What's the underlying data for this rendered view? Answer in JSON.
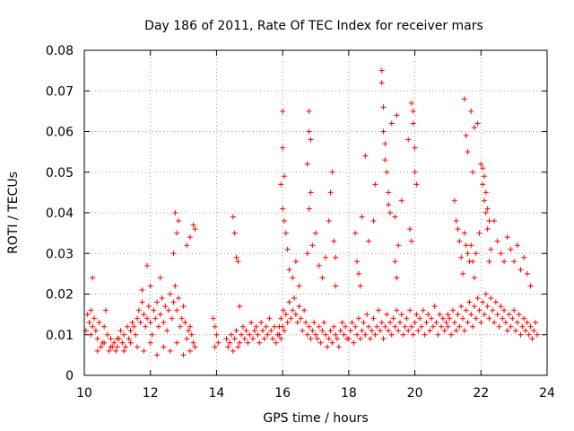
{
  "chart_data": {
    "type": "scatter",
    "title": "Day 186 of 2011, Rate Of TEC Index for receiver mars",
    "xlabel": "GPS time / hours",
    "ylabel": "ROTI / TECUs",
    "xlim": [
      10,
      24
    ],
    "ylim": [
      0,
      0.08
    ],
    "xticks": [
      "10",
      "12",
      "14",
      "16",
      "18",
      "20",
      "22",
      "24"
    ],
    "yticks": [
      "0",
      "0.01",
      "0.02",
      "0.03",
      "0.04",
      "0.05",
      "0.06",
      "0.07",
      "0.08"
    ],
    "grid": true,
    "marker": "+",
    "color": "#ff0000",
    "series": [
      {
        "x": [
          10.05,
          10.1,
          10.15,
          10.2,
          10.25,
          10.3,
          10.35,
          10.4,
          10.45,
          10.5,
          10.55,
          10.6,
          10.65,
          10.7,
          10.75,
          10.8,
          10.85,
          10.9,
          10.95,
          11.0,
          11.05,
          11.1,
          11.15,
          11.2,
          11.25,
          11.3,
          11.35,
          11.4,
          11.45,
          11.5,
          11.55,
          11.6,
          11.65,
          11.7,
          11.75,
          11.8,
          11.85,
          11.9,
          11.95,
          12.0,
          12.05,
          12.1,
          12.15,
          12.2,
          12.25,
          12.3,
          12.35,
          12.4,
          12.45,
          12.5,
          12.55,
          12.6,
          12.65,
          12.7,
          12.75,
          12.8,
          12.85,
          12.9,
          12.95,
          13.0,
          13.05,
          13.1,
          13.15,
          13.2,
          13.25,
          13.3,
          13.35,
          10.2,
          10.4,
          10.6,
          10.8,
          11.0,
          11.2,
          11.4,
          11.6,
          11.8,
          12.0,
          12.2,
          12.4,
          12.6,
          12.8,
          13.0,
          13.2,
          10.25,
          11.75,
          11.9,
          12.3,
          12.75,
          12.8,
          12.85,
          13.1,
          13.2,
          13.3,
          13.35,
          12.7,
          12.0,
          13.9,
          13.95,
          14.0,
          14.05,
          13.95,
          14.3,
          14.35,
          14.4,
          14.45,
          14.5,
          14.55,
          14.6,
          14.65,
          14.7,
          14.75,
          14.8,
          14.85,
          14.9,
          14.95,
          15.0,
          15.05,
          15.1,
          15.15,
          15.2,
          15.25,
          15.3,
          15.35,
          15.4,
          15.45,
          15.5,
          15.55,
          15.6,
          15.65,
          15.7,
          15.75,
          15.8,
          15.85,
          15.9,
          15.95,
          14.5,
          14.55,
          14.6,
          14.65,
          14.7,
          15.9,
          15.95,
          16.0,
          16.02,
          16.05,
          16.1,
          16.15,
          16.2,
          16.25,
          16.3,
          16.35,
          16.4,
          16.45,
          16.5,
          16.55,
          16.6,
          16.65,
          16.7,
          16.75,
          16.8,
          16.85,
          16.9,
          16.95,
          17.0,
          17.05,
          17.1,
          17.15,
          17.2,
          17.25,
          17.3,
          17.35,
          17.4,
          17.45,
          17.5,
          17.55,
          17.6,
          17.65,
          17.7,
          17.75,
          17.8,
          17.85,
          17.9,
          17.95,
          16.0,
          16.0,
          16.05,
          15.95,
          16.0,
          16.05,
          16.1,
          16.15,
          16.2,
          16.3,
          16.4,
          16.5,
          16.8,
          16.8,
          16.85,
          16.8,
          16.85,
          16.9,
          16.75,
          16.75,
          17.0,
          17.1,
          17.2,
          17.3,
          17.4,
          17.5,
          17.45,
          17.55,
          17.6,
          17.6,
          18.0,
          18.05,
          18.1,
          18.15,
          18.2,
          18.25,
          18.3,
          18.35,
          18.4,
          18.45,
          18.5,
          18.55,
          18.6,
          18.65,
          18.7,
          18.75,
          18.8,
          18.85,
          18.9,
          18.95,
          19.0,
          19.05,
          19.1,
          19.15,
          19.2,
          19.25,
          19.3,
          19.35,
          19.4,
          19.45,
          19.5,
          19.55,
          19.6,
          19.65,
          19.7,
          19.75,
          19.8,
          19.85,
          19.9,
          19.95,
          20.0,
          20.05,
          20.1,
          20.15,
          20.2,
          20.25,
          20.3,
          20.35,
          20.4,
          20.45,
          20.5,
          20.55,
          20.6,
          20.65,
          20.7,
          20.75,
          20.8,
          20.85,
          20.9,
          20.95,
          21.0,
          18.2,
          18.25,
          18.3,
          18.35,
          18.4,
          18.5,
          18.6,
          18.75,
          18.8,
          19.0,
          19.0,
          19.05,
          19.05,
          19.1,
          19.1,
          19.15,
          19.2,
          19.2,
          19.25,
          19.3,
          19.4,
          19.45,
          19.6,
          19.8,
          19.9,
          19.95,
          19.95,
          20.0,
          20.0,
          20.05,
          19.85,
          19.9,
          19.4,
          19.45,
          19.5,
          21.0,
          21.05,
          21.1,
          21.15,
          21.2,
          21.25,
          21.3,
          21.35,
          21.4,
          21.45,
          21.5,
          21.55,
          21.6,
          21.65,
          21.7,
          21.75,
          21.8,
          21.85,
          21.9,
          21.95,
          22.0,
          22.05,
          22.1,
          22.15,
          22.2,
          22.25,
          22.3,
          22.35,
          22.4,
          22.45,
          22.5,
          22.55,
          22.6,
          22.65,
          22.7,
          22.75,
          22.8,
          22.85,
          22.9,
          22.95,
          23.0,
          23.05,
          23.1,
          23.15,
          23.2,
          23.25,
          23.3,
          23.35,
          23.4,
          23.45,
          23.5,
          23.55,
          23.6,
          23.65,
          23.7,
          21.2,
          21.25,
          21.3,
          21.35,
          21.4,
          21.45,
          21.5,
          21.55,
          21.6,
          21.65,
          21.7,
          21.75,
          21.8,
          21.95,
          22.0,
          22.05,
          22.1,
          22.15,
          22.2,
          22.25,
          22.3,
          22.4,
          22.5,
          22.6,
          22.7,
          22.8,
          22.9,
          23.0,
          23.1,
          23.2,
          23.3,
          23.4,
          23.5,
          21.5,
          21.55,
          21.6,
          21.7,
          21.75,
          21.8,
          22.05,
          22.1,
          22.15,
          22.2,
          22.25,
          21.85,
          21.9
        ],
        "y": [
          0.011,
          0.015,
          0.013,
          0.016,
          0.012,
          0.014,
          0.011,
          0.009,
          0.013,
          0.007,
          0.008,
          0.012,
          0.016,
          0.01,
          0.006,
          0.009,
          0.007,
          0.008,
          0.006,
          0.007,
          0.009,
          0.011,
          0.008,
          0.01,
          0.007,
          0.012,
          0.009,
          0.011,
          0.013,
          0.012,
          0.01,
          0.014,
          0.016,
          0.013,
          0.018,
          0.015,
          0.012,
          0.014,
          0.017,
          0.013,
          0.01,
          0.016,
          0.014,
          0.018,
          0.012,
          0.015,
          0.019,
          0.013,
          0.017,
          0.011,
          0.016,
          0.02,
          0.014,
          0.018,
          0.022,
          0.016,
          0.019,
          0.012,
          0.014,
          0.017,
          0.013,
          0.009,
          0.011,
          0.012,
          0.01,
          0.008,
          0.007,
          0.01,
          0.006,
          0.008,
          0.007,
          0.009,
          0.006,
          0.008,
          0.007,
          0.006,
          0.008,
          0.005,
          0.007,
          0.006,
          0.008,
          0.005,
          0.006,
          0.024,
          0.021,
          0.027,
          0.024,
          0.04,
          0.035,
          0.038,
          0.032,
          0.034,
          0.037,
          0.036,
          0.03,
          0.022,
          0.014,
          0.012,
          0.01,
          0.008,
          0.007,
          0.009,
          0.007,
          0.008,
          0.01,
          0.006,
          0.009,
          0.011,
          0.007,
          0.008,
          0.01,
          0.012,
          0.009,
          0.011,
          0.008,
          0.01,
          0.013,
          0.009,
          0.011,
          0.012,
          0.01,
          0.008,
          0.013,
          0.011,
          0.009,
          0.012,
          0.01,
          0.014,
          0.011,
          0.009,
          0.012,
          0.008,
          0.01,
          0.012,
          0.009,
          0.039,
          0.035,
          0.029,
          0.028,
          0.017,
          0.01,
          0.014,
          0.012,
          0.016,
          0.011,
          0.015,
          0.013,
          0.018,
          0.014,
          0.016,
          0.019,
          0.015,
          0.013,
          0.017,
          0.014,
          0.011,
          0.016,
          0.013,
          0.01,
          0.012,
          0.009,
          0.011,
          0.013,
          0.01,
          0.009,
          0.012,
          0.008,
          0.011,
          0.013,
          0.01,
          0.007,
          0.009,
          0.011,
          0.008,
          0.012,
          0.01,
          0.009,
          0.007,
          0.011,
          0.013,
          0.01,
          0.012,
          0.009,
          0.065,
          0.056,
          0.049,
          0.047,
          0.041,
          0.038,
          0.035,
          0.031,
          0.026,
          0.024,
          0.028,
          0.022,
          0.065,
          0.06,
          0.058,
          0.041,
          0.045,
          0.032,
          0.03,
          0.052,
          0.035,
          0.027,
          0.024,
          0.029,
          0.038,
          0.05,
          0.045,
          0.033,
          0.029,
          0.022,
          0.009,
          0.011,
          0.013,
          0.008,
          0.012,
          0.01,
          0.014,
          0.009,
          0.011,
          0.013,
          0.01,
          0.015,
          0.012,
          0.009,
          0.011,
          0.014,
          0.01,
          0.012,
          0.016,
          0.011,
          0.013,
          0.009,
          0.012,
          0.015,
          0.011,
          0.013,
          0.01,
          0.014,
          0.012,
          0.016,
          0.011,
          0.013,
          0.015,
          0.01,
          0.012,
          0.014,
          0.011,
          0.016,
          0.012,
          0.01,
          0.013,
          0.015,
          0.011,
          0.014,
          0.012,
          0.016,
          0.01,
          0.013,
          0.015,
          0.011,
          0.014,
          0.012,
          0.017,
          0.013,
          0.01,
          0.015,
          0.012,
          0.014,
          0.011,
          0.013,
          0.015,
          0.035,
          0.028,
          0.025,
          0.022,
          0.039,
          0.054,
          0.033,
          0.038,
          0.047,
          0.075,
          0.072,
          0.066,
          0.06,
          0.057,
          0.053,
          0.05,
          0.045,
          0.042,
          0.04,
          0.062,
          0.039,
          0.064,
          0.043,
          0.058,
          0.067,
          0.065,
          0.062,
          0.056,
          0.05,
          0.047,
          0.036,
          0.033,
          0.028,
          0.024,
          0.032,
          0.012,
          0.014,
          0.01,
          0.016,
          0.013,
          0.011,
          0.015,
          0.012,
          0.017,
          0.014,
          0.011,
          0.016,
          0.013,
          0.018,
          0.015,
          0.012,
          0.017,
          0.014,
          0.019,
          0.016,
          0.013,
          0.018,
          0.015,
          0.02,
          0.017,
          0.014,
          0.019,
          0.016,
          0.013,
          0.018,
          0.015,
          0.012,
          0.017,
          0.014,
          0.016,
          0.013,
          0.011,
          0.015,
          0.012,
          0.014,
          0.016,
          0.011,
          0.013,
          0.015,
          0.01,
          0.012,
          0.014,
          0.011,
          0.013,
          0.01,
          0.012,
          0.009,
          0.011,
          0.013,
          0.01,
          0.043,
          0.038,
          0.036,
          0.033,
          0.029,
          0.025,
          0.035,
          0.032,
          0.03,
          0.028,
          0.032,
          0.028,
          0.024,
          0.035,
          0.052,
          0.047,
          0.043,
          0.04,
          0.036,
          0.028,
          0.031,
          0.038,
          0.033,
          0.03,
          0.028,
          0.034,
          0.031,
          0.028,
          0.032,
          0.026,
          0.029,
          0.025,
          0.022,
          0.068,
          0.059,
          0.055,
          0.065,
          0.05,
          0.061,
          0.051,
          0.049,
          0.045,
          0.041,
          0.038,
          0.03,
          0.062
        ]
      }
    ]
  }
}
